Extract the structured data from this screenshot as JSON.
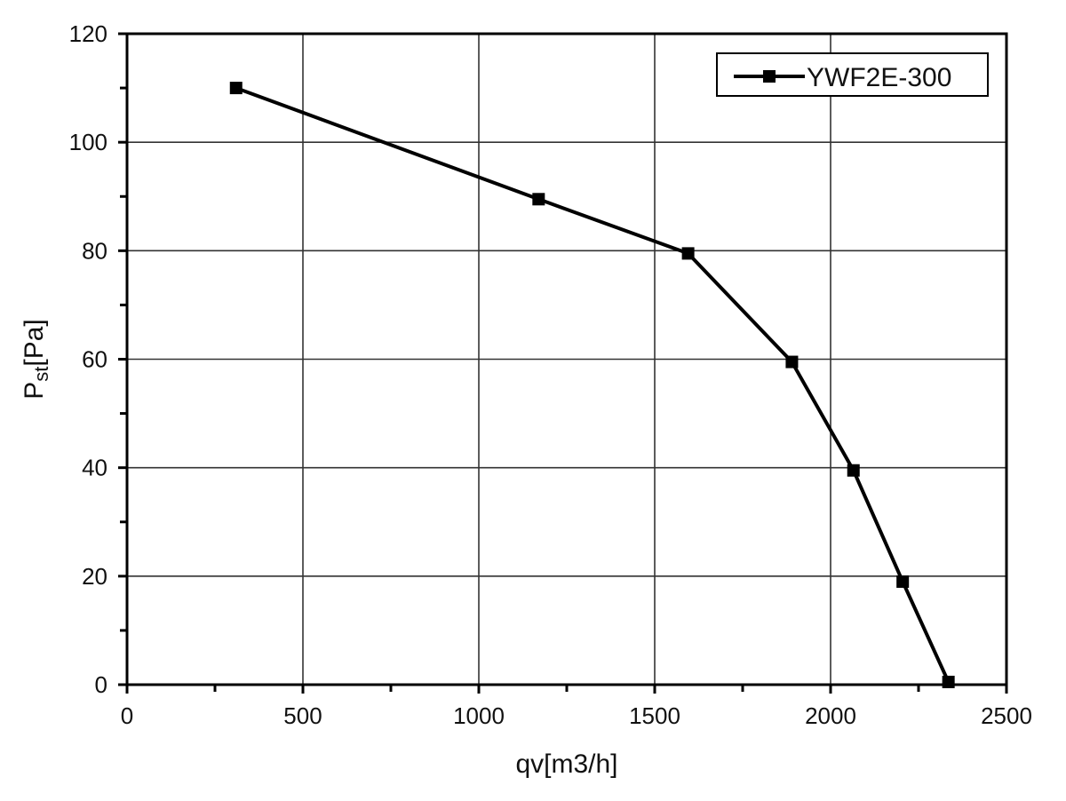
{
  "chart_data": {
    "type": "line",
    "xlabel": "qv[m3/h]",
    "ylabel_main": "P",
    "ylabel_sub": "st",
    "ylabel_tail": "[Pa]",
    "xlim": [
      0,
      2500
    ],
    "ylim": [
      0,
      120
    ],
    "xticks": [
      0,
      500,
      1000,
      1500,
      2000,
      2500
    ],
    "yticks": [
      0,
      20,
      40,
      60,
      80,
      100,
      120
    ],
    "x_minor_step": 250,
    "y_minor_step": 10,
    "grid": true,
    "legend_position": "top-right",
    "series": [
      {
        "name": "YWF2E-300",
        "color": "#000000",
        "marker": "square",
        "x": [
          310,
          1170,
          1595,
          1890,
          2065,
          2205,
          2335
        ],
        "y": [
          110,
          89.5,
          79.5,
          59.5,
          39.5,
          19,
          0.5
        ]
      }
    ]
  }
}
